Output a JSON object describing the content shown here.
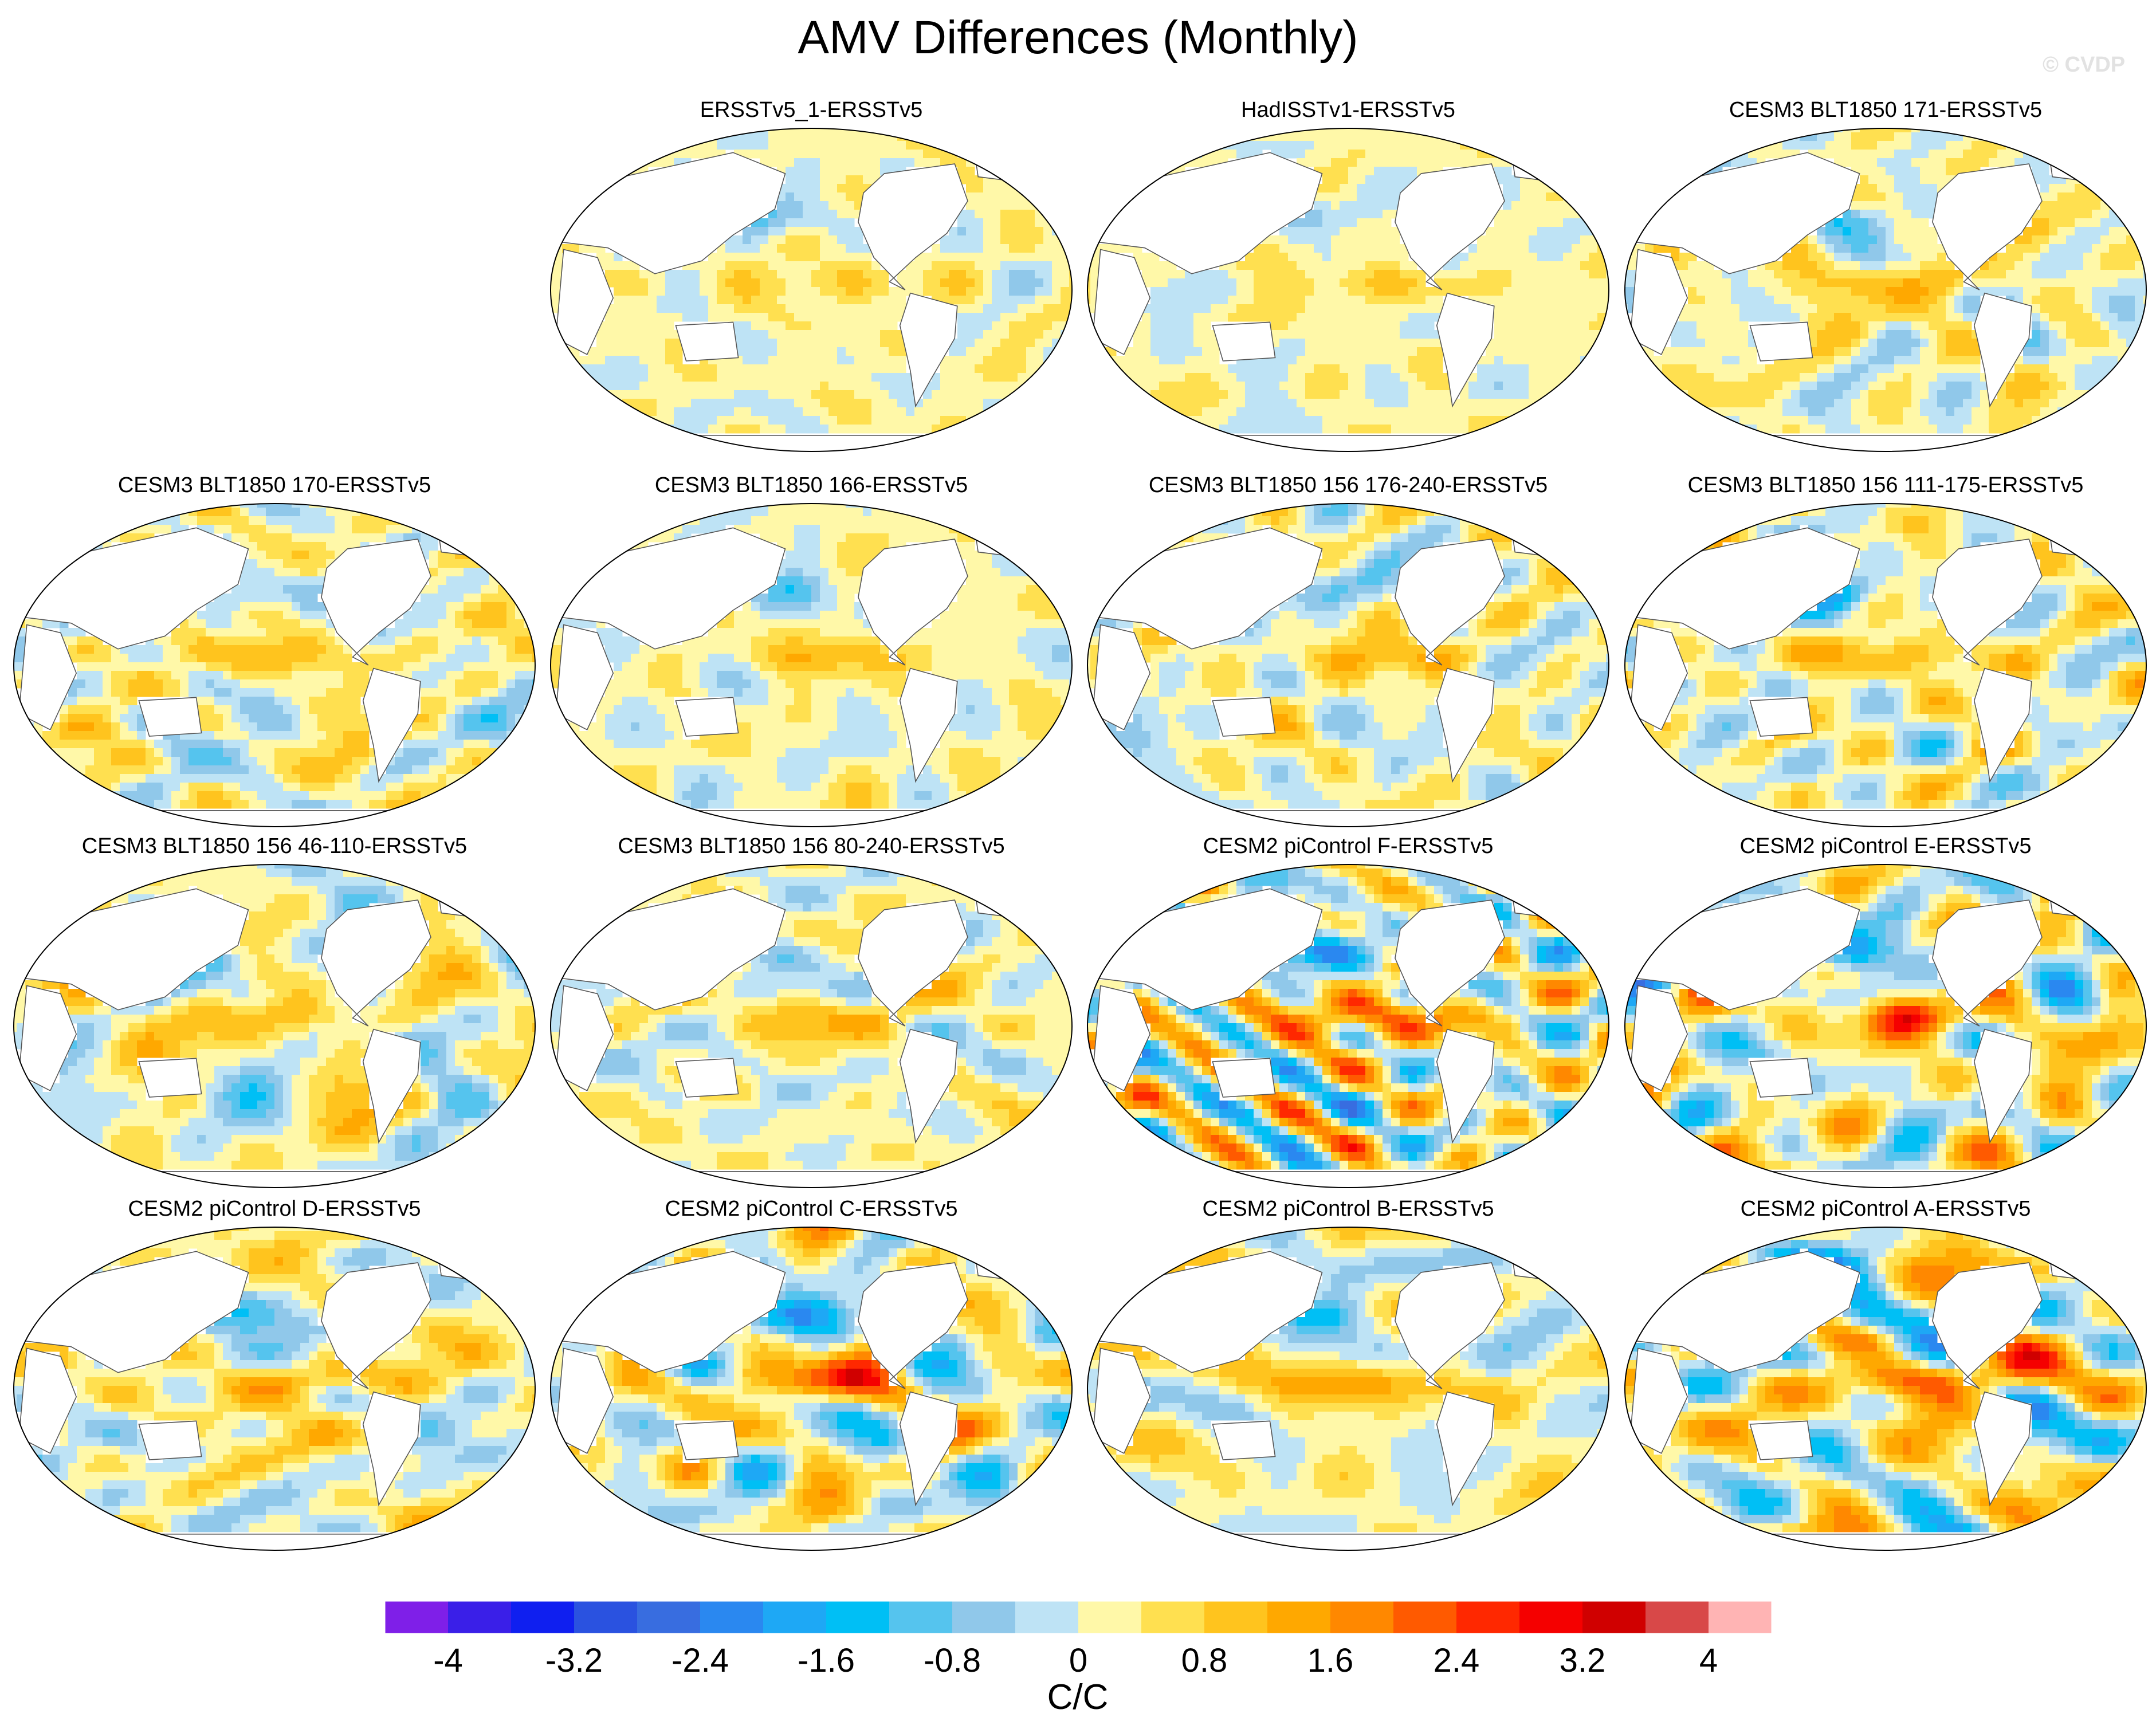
{
  "title": "AMV Differences (Monthly)",
  "watermark": "© CVDP",
  "panels": [
    {
      "title": "ERSSTv5_1-ERSSTv5",
      "row": 0,
      "col": 1,
      "seed": 3,
      "amp": 0.8
    },
    {
      "title": "HadISSTv1-ERSSTv5",
      "row": 0,
      "col": 2,
      "seed": 7,
      "amp": 0.7
    },
    {
      "title": "CESM3 BLT1850 171-ERSSTv5",
      "row": 0,
      "col": 3,
      "seed": 11,
      "amp": 1.0
    },
    {
      "title": "CESM3 BLT1850 170-ERSSTv5",
      "row": 1,
      "col": 0,
      "seed": 13,
      "amp": 1.1
    },
    {
      "title": "CESM3 BLT1850 166-ERSSTv5",
      "row": 1,
      "col": 1,
      "seed": 17,
      "amp": 1.0
    },
    {
      "title": "CESM3 BLT1850 156 176-240-ERSSTv5",
      "row": 1,
      "col": 2,
      "seed": 19,
      "amp": 1.1
    },
    {
      "title": "CESM3 BLT1850 156 111-175-ERSSTv5",
      "row": 1,
      "col": 3,
      "seed": 23,
      "amp": 1.2
    },
    {
      "title": "CESM3 BLT1850 156 46-110-ERSSTv5",
      "row": 2,
      "col": 0,
      "seed": 29,
      "amp": 1.0
    },
    {
      "title": "CESM3 BLT1850 156 80-240-ERSSTv5",
      "row": 2,
      "col": 1,
      "seed": 31,
      "amp": 1.1
    },
    {
      "title": "CESM2 piControl F-ERSSTv5",
      "row": 2,
      "col": 2,
      "seed": 37,
      "amp": 2.2
    },
    {
      "title": "CESM2 piControl E-ERSSTv5",
      "row": 2,
      "col": 3,
      "seed": 41,
      "amp": 2.0
    },
    {
      "title": "CESM2 piControl D-ERSSTv5",
      "row": 3,
      "col": 0,
      "seed": 43,
      "amp": 1.3
    },
    {
      "title": "CESM2 piControl C-ERSSTv5",
      "row": 3,
      "col": 1,
      "seed": 47,
      "amp": 2.0
    },
    {
      "title": "CESM2 piControl B-ERSSTv5",
      "row": 3,
      "col": 2,
      "seed": 53,
      "amp": 1.6
    },
    {
      "title": "CESM2 piControl A-ERSSTv5",
      "row": 3,
      "col": 3,
      "seed": 59,
      "amp": 2.3
    }
  ],
  "colorbar": {
    "colors": [
      "#7f1fe8",
      "#3a1fe8",
      "#0f1ff0",
      "#2a52e0",
      "#386de0",
      "#2a88f0",
      "#1ea8f5",
      "#00bff5",
      "#55c4ee",
      "#90c8ea",
      "#bee3f5",
      "#fff8a8",
      "#ffe050",
      "#ffc41e",
      "#ffa800",
      "#ff8800",
      "#ff5a00",
      "#ff2800",
      "#f50000",
      "#d00000",
      "#d84848",
      "#ffb4b4"
    ],
    "levels": [
      -4.0,
      -3.6,
      -3.2,
      -2.8,
      -2.4,
      -2.0,
      -1.6,
      -1.2,
      -0.8,
      -0.4,
      0.0,
      0.4,
      0.8,
      1.2,
      1.6,
      2.0,
      2.4,
      2.8,
      3.2,
      3.6,
      4.0
    ],
    "labels": [
      "-4",
      "-3.2",
      "-2.4",
      "-1.6",
      "-0.8",
      "0",
      "0.8",
      "1.6",
      "2.4",
      "3.2",
      "4"
    ],
    "units": "C/C"
  }
}
